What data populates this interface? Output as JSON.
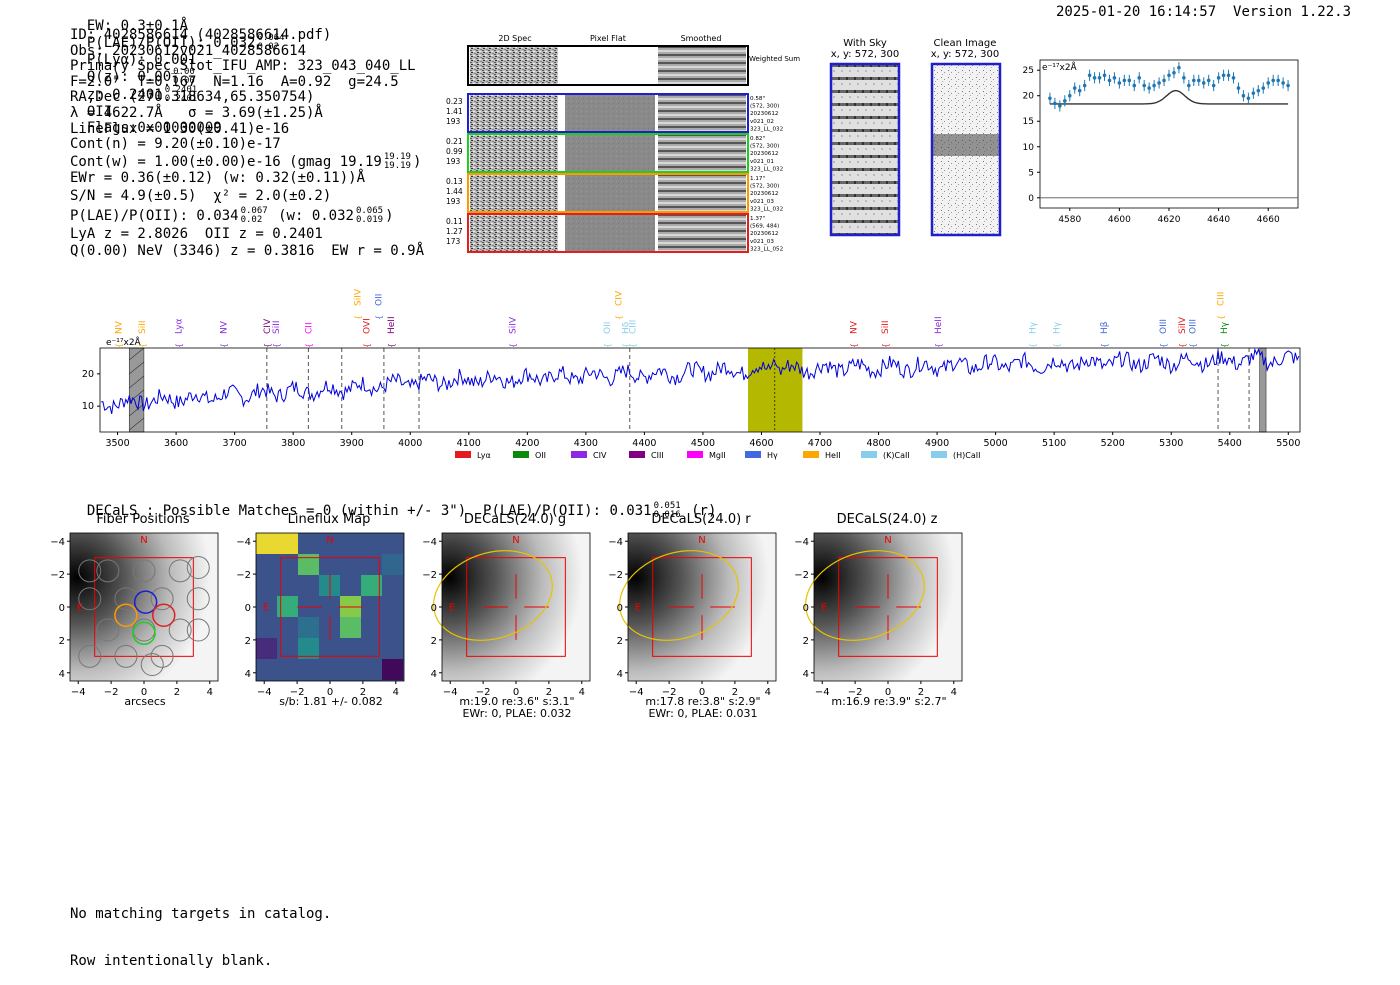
{
  "header": {
    "ew": "EW: 0.3±0.1Å",
    "plae": "P(LAE)/P(OII): 0.032",
    "plae_hi": "0.064",
    "plae_lo": "0.02",
    "plya": "P(Lyα): 0.001",
    "qz": "Q(z): 0.00",
    "qz_hi": "0.00",
    "qz_lo": "0.00",
    "z": "z: 0.2401",
    "z_hi": "0.2401",
    "z_lo": "0.2401",
    "z_line": "OII",
    "flags": "Flags:0x00000009",
    "timestamp": "2025-01-20 16:14:57",
    "version": "Version 1.22.3"
  },
  "info": {
    "lines": [
      "ID: 4028586614 (4028586614.pdf)",
      "Obs: 20230612v021_4028586614",
      "Primary Spec_Slot_IFU_AMP: 323_043_040_LL",
      "F=2.0\"  T=0.167  N=1.16  A=0.92  g=24.5",
      "RA,Dec (270.318634,65.350754)",
      "λ = 4622.7Å   σ = 3.69(±1.25)Å",
      "LineFlux = 1.30(±0.41)e-16",
      "Cont(n) = 9.20(±0.10)e-17"
    ],
    "cont_w": "Cont(w) = 1.00(±0.00)e-16 (gmag 19.19",
    "cont_w_hi": "19.19",
    "cont_w_lo": "19.19",
    "cont_w_tail": ")",
    "ewr": "EWr = 0.36(±0.12) (w: 0.32(±0.11))Å",
    "sn": "S/N = 4.9(±0.5)  χ² = 2.0(±0.2)",
    "plae2": "P(LAE)/P(OII): 0.034",
    "plae2_hi": "0.067",
    "plae2_lo": "0.02",
    "plae2_mid": "(w: 0.032",
    "plae2_w_hi": "0.065",
    "plae2_w_lo": "0.019",
    "plae2_tail": ")",
    "lya": "LyA z = 2.8026  OII z = 0.2401",
    "q": "Q(0.00) NeV (3346) z = 0.3816  EW r = 0.9Å"
  },
  "stamps": {
    "col_titles": [
      "2D Spec",
      "Pixel Flat",
      "Smoothed"
    ],
    "weighted_sum": "Weighted Sum",
    "rows": [
      {
        "left": [
          "0.23",
          "1.41",
          "193"
        ],
        "right": [
          "0.58\"",
          "(572, 300)",
          "20230612",
          "v021_02",
          "323_LL_032"
        ],
        "color": "#1f1fcc"
      },
      {
        "left": [
          "0.21",
          "0.99",
          "193"
        ],
        "right": [
          "0.82\"",
          "(572, 300)",
          "20230612",
          "v021_01",
          "323_LL_032"
        ],
        "color": "#22cc22"
      },
      {
        "left": [
          "0.13",
          "1.44",
          "193"
        ],
        "right": [
          "1.17\"",
          "(572, 300)",
          "20230612",
          "v021_03",
          "323_LL_032"
        ],
        "color": "#ff9900"
      },
      {
        "left": [
          "0.11",
          "1.27",
          "173"
        ],
        "right": [
          "1.37\"",
          "(569, 484)",
          "20230612",
          "v021_03",
          "323_LL_052"
        ],
        "color": "#e02020"
      }
    ]
  },
  "sky": {
    "with_sky": "With Sky",
    "with_sky_xy": "x, y: 572, 300",
    "clean": "Clean Image",
    "clean_xy": "x, y: 572, 300"
  },
  "zoom_chart": {
    "type": "scatter",
    "unit_label": "e⁻¹⁷x2Å",
    "x": [
      4572,
      4574,
      4576,
      4578,
      4580,
      4582,
      4584,
      4586,
      4588,
      4590,
      4592,
      4594,
      4596,
      4598,
      4600,
      4602,
      4604,
      4606,
      4608,
      4610,
      4612,
      4614,
      4616,
      4618,
      4620,
      4622,
      4624,
      4626,
      4628,
      4630,
      4632,
      4634,
      4636,
      4638,
      4640,
      4642,
      4644,
      4646,
      4648,
      4650,
      4652,
      4654,
      4656,
      4658,
      4660,
      4662,
      4664,
      4666,
      4668
    ],
    "y": [
      19.5,
      18.5,
      18.0,
      19.0,
      20.0,
      21.5,
      21.0,
      22.0,
      24.0,
      23.5,
      23.5,
      24.0,
      23.0,
      23.5,
      22.5,
      23.0,
      23.0,
      22.0,
      23.5,
      22.0,
      21.5,
      22.0,
      22.5,
      23.0,
      24.0,
      24.5,
      25.5,
      23.5,
      22.0,
      23.0,
      23.0,
      22.5,
      23.0,
      22.0,
      23.5,
      24.0,
      24.0,
      23.5,
      21.5,
      20.0,
      19.5,
      20.5,
      21.0,
      21.5,
      22.5,
      23.0,
      23.0,
      22.5,
      22.0
    ],
    "fit_baseline": 18.4,
    "fit_peak": 2.6,
    "fit_center": 4622.7,
    "fit_sigma": 3.69,
    "xlim": [
      4568,
      4672
    ],
    "ylim": [
      -2,
      27
    ],
    "xticks": [
      4580,
      4600,
      4620,
      4640,
      4660
    ],
    "yticks": [
      0,
      5,
      10,
      15,
      20,
      25
    ],
    "point_color": "#1f77b4"
  },
  "main_chart": {
    "type": "line",
    "unit_label": "e⁻¹⁷x2Å",
    "xlim": [
      3470,
      5520
    ],
    "ylim": [
      2,
      28
    ],
    "xticks": [
      3500,
      3600,
      3700,
      3800,
      3900,
      4000,
      4100,
      4200,
      4300,
      4400,
      4500,
      4600,
      4700,
      4800,
      4900,
      5000,
      5100,
      5200,
      5300,
      5400,
      5500
    ],
    "yticks": [
      10,
      20
    ],
    "line_color": "#0000dd",
    "highlight": [
      4577,
      4670
    ],
    "highlight_color": "#b5b800",
    "center_line": 4622.7,
    "masked": [
      [
        3515,
        3535
      ],
      [
        3520,
        3545
      ],
      [
        5451,
        5462
      ]
    ],
    "dashed_lines": [
      3755,
      3826,
      3883,
      3955,
      4015,
      4375,
      5380,
      5433
    ],
    "legend": [
      {
        "name": "Lyα",
        "color": "#e41a1c"
      },
      {
        "name": "OII",
        "color": "#0a8a0a"
      },
      {
        "name": "CIV",
        "color": "#8a2be2"
      },
      {
        "name": "CIII",
        "color": "#800080"
      },
      {
        "name": "MgII",
        "color": "#ff00ff"
      },
      {
        "name": "Hγ",
        "color": "#4169e1"
      },
      {
        "name": "HeII",
        "color": "#ffa500"
      },
      {
        "name": "(K)CaII",
        "color": "#87ceeb"
      },
      {
        "name": "(H)CaII",
        "color": "#87ceeb"
      }
    ],
    "line_labels": [
      {
        "x": 3502,
        "label": "NV",
        "color": "#ffa500",
        "row": 0
      },
      {
        "x": 3542,
        "label": "SiII",
        "color": "#ffa500",
        "row": 0
      },
      {
        "x": 3604,
        "label": "Lyα",
        "color": "#8a2be2",
        "row": 0
      },
      {
        "x": 3681,
        "label": "NV",
        "color": "#8a2be2",
        "row": 0
      },
      {
        "x": 3755,
        "label": "CIV",
        "color": "#800080",
        "row": 0
      },
      {
        "x": 3771,
        "label": "SiII",
        "color": "#8a2be2",
        "row": 0
      },
      {
        "x": 3826,
        "label": "CII",
        "color": "#ff00ff",
        "row": 0
      },
      {
        "x": 3910,
        "label": "SiIV",
        "color": "#ffa500",
        "row": 1
      },
      {
        "x": 3925,
        "label": "OVI",
        "color": "#e41a1c",
        "row": 0
      },
      {
        "x": 3946,
        "label": "OII",
        "color": "#4169e1",
        "row": 1
      },
      {
        "x": 3967,
        "label": "HeII",
        "color": "#800080",
        "row": 0
      },
      {
        "x": 4175,
        "label": "SiIV",
        "color": "#8a2be2",
        "row": 0
      },
      {
        "x": 4336,
        "label": "OII",
        "color": "#87ceeb",
        "row": 0
      },
      {
        "x": 4356,
        "label": "CIV",
        "color": "#ffa500",
        "row": 1
      },
      {
        "x": 4368,
        "label": "Hδ",
        "color": "#87ceeb",
        "row": 0
      },
      {
        "x": 4380,
        "label": "CIII",
        "color": "#87ceeb",
        "row": 0
      },
      {
        "x": 4757,
        "label": "NV",
        "color": "#e41a1c",
        "row": 0
      },
      {
        "x": 4811,
        "label": "SiII",
        "color": "#e41a1c",
        "row": 0
      },
      {
        "x": 4902,
        "label": "HeII",
        "color": "#8a2be2",
        "row": 0
      },
      {
        "x": 5063,
        "label": "Hγ",
        "color": "#87ceeb",
        "row": 0
      },
      {
        "x": 5104,
        "label": "Hγ",
        "color": "#87ceeb",
        "row": 0
      },
      {
        "x": 5185,
        "label": "Hβ",
        "color": "#4169e1",
        "row": 0
      },
      {
        "x": 5286,
        "label": "OIII",
        "color": "#4169e1",
        "row": 0
      },
      {
        "x": 5318,
        "label": "SiIV",
        "color": "#e41a1c",
        "row": 0
      },
      {
        "x": 5336,
        "label": "OIII",
        "color": "#4169e1",
        "row": 0
      },
      {
        "x": 5384,
        "label": "CIII",
        "color": "#ffa500",
        "row": 1
      },
      {
        "x": 5390,
        "label": "Hγ",
        "color": "#0a8a0a",
        "row": 0
      }
    ]
  },
  "decals": {
    "line": "DECaLS : Possible Matches = 0 (within +/- 3\")  P(LAE)/P(OII): 0.031",
    "hi": "0.051",
    "lo": "0.016",
    "tail": "(r)"
  },
  "cutouts": [
    {
      "title": "Fiber Positions",
      "captions": [
        "arcsecs"
      ],
      "kind": "fiber"
    },
    {
      "title": "Lineflux Map",
      "captions": [
        "s/b: 1.81 +/- 0.082"
      ],
      "kind": "lineflux"
    },
    {
      "title": "DECaLS(24.0) g",
      "captions": [
        "m:19.0  re:3.6\"  s:3.1\"",
        "EWr: 0, PLAE: 0.032"
      ],
      "kind": "decals"
    },
    {
      "title": "DECaLS(24.0) r",
      "captions": [
        "m:17.8  re:3.8\"  s:2.9\"",
        "EWr: 0, PLAE: 0.031"
      ],
      "kind": "decals"
    },
    {
      "title": "DECaLS(24.0) z",
      "captions": [
        "m:16.9  re:3.9\"  s:2.7\""
      ],
      "kind": "decals"
    }
  ],
  "cutout_axes": {
    "ticks": [
      "−4",
      "−2",
      "0",
      "2",
      "4"
    ],
    "compass_n": "N",
    "compass_e": "E"
  },
  "footer": {
    "lines": [
      "No matching targets in catalog.",
      "Row intentionally blank."
    ]
  }
}
